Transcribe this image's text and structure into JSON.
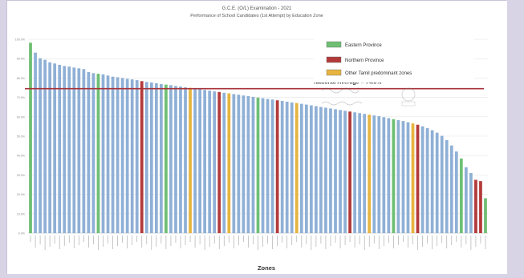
{
  "chart_data": {
    "type": "bar",
    "title": "G.C.E. (O/L) Examination - 2021",
    "subtitle": "Performance of School Candidates (1st Attempt) by Education Zone",
    "xlabel": "Zones",
    "ylabel": "",
    "ylim": [
      0,
      100
    ],
    "yticks": [
      0,
      10,
      20,
      30,
      40,
      50,
      60,
      70,
      80,
      90,
      100
    ],
    "ytick_labels": [
      "0.0%",
      "10.0%",
      "20.0%",
      "30.0%",
      "40.0%",
      "50.0%",
      "60.0%",
      "70.0%",
      "80.0%",
      "90.0%",
      "100.0%"
    ],
    "grid": true,
    "legend_position": "top-right",
    "reference_line": {
      "value": 74.5,
      "label": "National Average = 74.5%",
      "color": "#a8323a"
    },
    "legend": [
      {
        "key": "eastern",
        "label": "Eastern Province",
        "color": "#6fbf73"
      },
      {
        "key": "northern",
        "label": "Northern Province",
        "color": "#b33a3a"
      },
      {
        "key": "tamil",
        "label": "Other Tamil predominant zones",
        "color": "#e6b440"
      }
    ],
    "colors": {
      "default": "#8fb0d6",
      "eastern": "#6fbf73",
      "northern": "#b33a3a",
      "tamil": "#e6b440"
    },
    "values": [
      98.2,
      93.1,
      90.2,
      89.4,
      88.1,
      87.5,
      86.8,
      86.2,
      85.9,
      85.4,
      85.0,
      84.6,
      83.1,
      82.5,
      82.2,
      81.9,
      81.3,
      80.7,
      80.4,
      80.0,
      79.6,
      79.3,
      78.9,
      78.4,
      78.0,
      77.7,
      77.3,
      76.9,
      76.6,
      76.3,
      75.9,
      75.6,
      75.2,
      74.9,
      74.5,
      74.2,
      73.9,
      73.5,
      73.1,
      72.8,
      72.4,
      72.1,
      71.7,
      71.4,
      71.0,
      70.7,
      70.3,
      69.9,
      69.6,
      69.2,
      68.9,
      68.5,
      68.2,
      67.8,
      67.4,
      67.1,
      66.7,
      66.3,
      65.9,
      65.5,
      65.1,
      64.7,
      64.3,
      63.9,
      63.5,
      63.1,
      62.7,
      62.3,
      61.9,
      61.5,
      61.1,
      60.7,
      60.3,
      59.8,
      59.3,
      58.8,
      58.3,
      57.8,
      57.2,
      56.6,
      55.9,
      55.1,
      54.2,
      53.1,
      51.8,
      50.2,
      48.0,
      45.2,
      42.1,
      38.5,
      34.0,
      31.0,
      27.5,
      26.8,
      18.0
    ],
    "groups": [
      "eastern",
      "default",
      "default",
      "default",
      "default",
      "default",
      "default",
      "default",
      "default",
      "default",
      "default",
      "default",
      "default",
      "default",
      "eastern",
      "default",
      "default",
      "default",
      "default",
      "default",
      "default",
      "default",
      "default",
      "northern",
      "default",
      "default",
      "default",
      "default",
      "eastern",
      "default",
      "default",
      "default",
      "default",
      "tamil",
      "default",
      "default",
      "default",
      "default",
      "default",
      "northern",
      "default",
      "tamil",
      "default",
      "default",
      "default",
      "default",
      "default",
      "eastern",
      "default",
      "default",
      "default",
      "northern",
      "default",
      "default",
      "default",
      "tamil",
      "default",
      "default",
      "default",
      "default",
      "default",
      "default",
      "default",
      "default",
      "default",
      "default",
      "northern",
      "default",
      "default",
      "default",
      "tamil",
      "default",
      "default",
      "default",
      "default",
      "eastern",
      "default",
      "default",
      "default",
      "tamil",
      "northern",
      "default",
      "default",
      "default",
      "default",
      "default",
      "default",
      "default",
      "default",
      "eastern",
      "default",
      "default",
      "northern",
      "northern",
      "eastern"
    ]
  }
}
